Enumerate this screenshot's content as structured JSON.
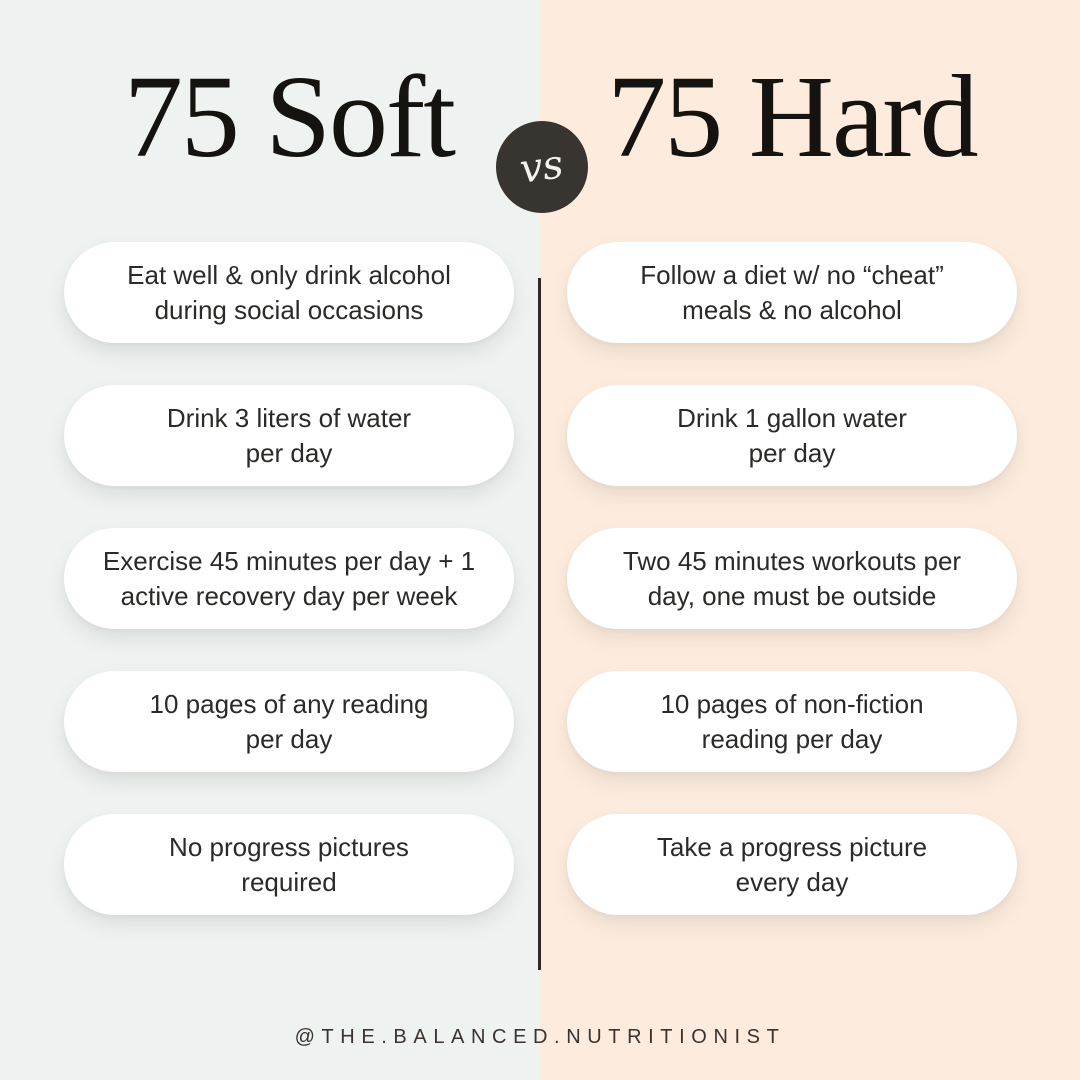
{
  "header": {
    "left_title": "75 Soft",
    "right_title": "75 Hard",
    "vs_label": "vs"
  },
  "columns": {
    "left": {
      "items": [
        {
          "lines": [
            "Eat well & only drink alcohol",
            "during social occasions"
          ]
        },
        {
          "lines": [
            "Drink 3 liters of water",
            "per day"
          ]
        },
        {
          "lines": [
            "Exercise 45 minutes per day + 1",
            "active recovery day per week"
          ]
        },
        {
          "lines": [
            "10 pages of any reading",
            "per day"
          ]
        },
        {
          "lines": [
            "No progress pictures",
            "required"
          ]
        }
      ]
    },
    "right": {
      "items": [
        {
          "lines": [
            "Follow a diet w/ no “cheat”",
            "meals & no alcohol"
          ]
        },
        {
          "lines": [
            "Drink 1 gallon water",
            "per day"
          ]
        },
        {
          "lines": [
            "Two 45 minutes workouts per",
            "day, one must be outside"
          ]
        },
        {
          "lines": [
            "10 pages of non-fiction",
            "reading per day"
          ]
        },
        {
          "lines": [
            "Take a progress picture",
            "every day"
          ]
        }
      ]
    }
  },
  "footer": {
    "handle": "@THE.BALANCED.NUTRITIONIST"
  },
  "colors": {
    "left_background": "#eef2f0",
    "right_background": "#fdecdd",
    "pill_background": "#ffffff",
    "pill_text": "#2b2a28",
    "title_text": "#15130f",
    "vs_circle": "#38342f",
    "vs_text": "#f6f3ef",
    "divider": "#2d2a27",
    "footer_text": "#3a3330"
  }
}
